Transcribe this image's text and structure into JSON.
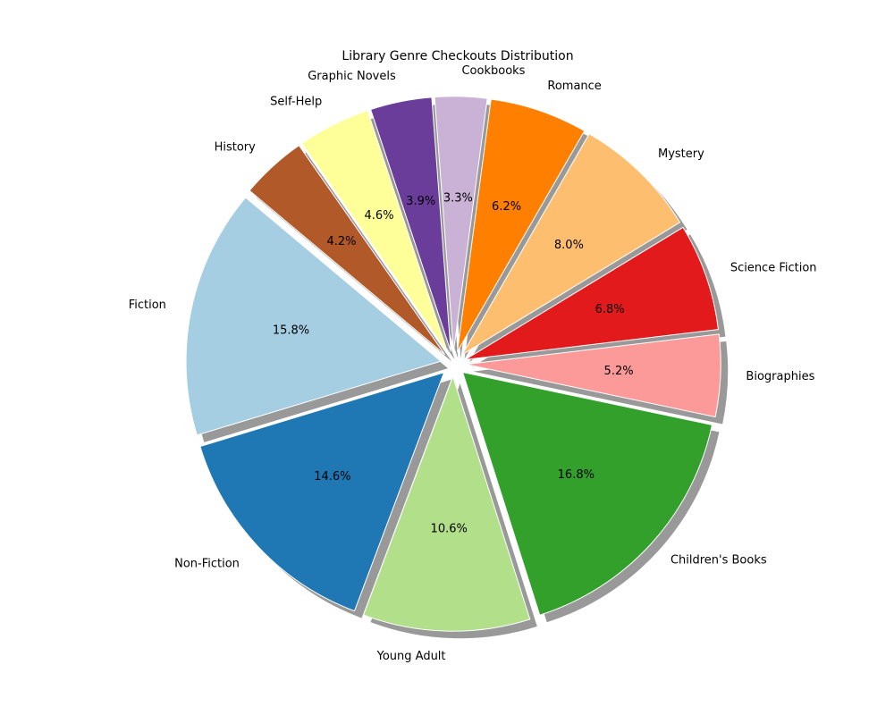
{
  "chart_data": {
    "type": "pie",
    "title": "Library Genre Checkouts Distribution",
    "start_angle_deg": 140,
    "direction": "counterclockwise",
    "shadow": true,
    "slices": [
      {
        "label": "Fiction",
        "value": 15.8,
        "pct_label": "15.8%",
        "color": "#a6cee3"
      },
      {
        "label": "Non-Fiction",
        "value": 14.6,
        "pct_label": "14.6%",
        "color": "#1f78b4"
      },
      {
        "label": "Young Adult",
        "value": 10.6,
        "pct_label": "10.6%",
        "color": "#b2df8a"
      },
      {
        "label": "Children's Books",
        "value": 16.8,
        "pct_label": "16.8%",
        "color": "#33a02c"
      },
      {
        "label": "Biographies",
        "value": 5.2,
        "pct_label": "5.2%",
        "color": "#fb9a99"
      },
      {
        "label": "Science Fiction",
        "value": 6.8,
        "pct_label": "6.8%",
        "color": "#e31a1c"
      },
      {
        "label": "Mystery",
        "value": 8.0,
        "pct_label": "8.0%",
        "color": "#fdbf6f"
      },
      {
        "label": "Romance",
        "value": 6.2,
        "pct_label": "6.2%",
        "color": "#ff7f00"
      },
      {
        "label": "Cookbooks",
        "value": 3.3,
        "pct_label": "3.3%",
        "color": "#cab2d6"
      },
      {
        "label": "Graphic Novels",
        "value": 3.9,
        "pct_label": "3.9%",
        "color": "#6a3d9a"
      },
      {
        "label": "Self-Help",
        "value": 4.6,
        "pct_label": "4.6%",
        "color": "#ffff99"
      },
      {
        "label": "History",
        "value": 4.2,
        "pct_label": "4.2%",
        "color": "#b15928"
      }
    ]
  }
}
